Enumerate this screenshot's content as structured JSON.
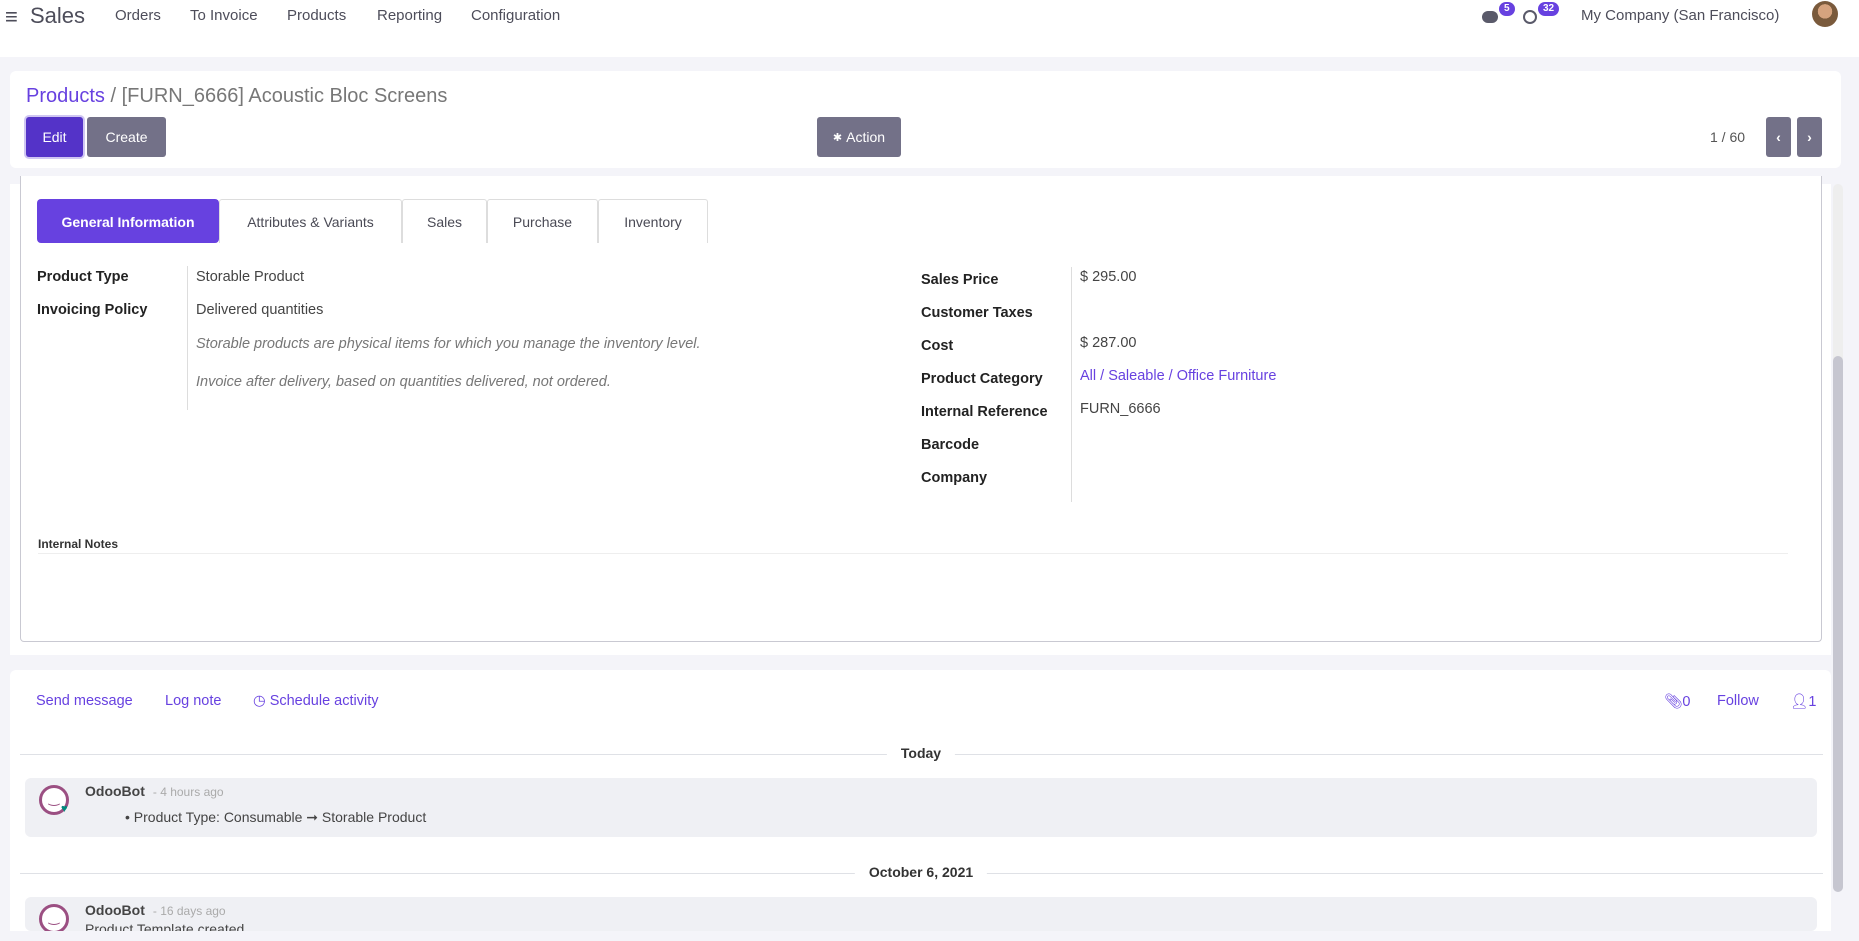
{
  "nav": {
    "app": "Sales",
    "menu": [
      "Orders",
      "To Invoice",
      "Products",
      "Reporting",
      "Configuration"
    ],
    "messages_count": "5",
    "activities_count": "32",
    "company": "My Company (San Francisco)"
  },
  "header": {
    "breadcrumb_parent": "Products",
    "breadcrumb_sep": "/",
    "title": "[FURN_6666] Acoustic Bloc Screens",
    "edit": "Edit",
    "create": "Create",
    "action": "Action",
    "pager": "1 / 60"
  },
  "tabs": [
    "General Information",
    "Attributes & Variants",
    "Sales",
    "Purchase",
    "Inventory"
  ],
  "left_fields": {
    "product_type_label": "Product Type",
    "product_type": "Storable Product",
    "invoicing_label": "Invoicing Policy",
    "invoicing": "Delivered quantities",
    "help1": "Storable products are physical items for which you manage the inventory level.",
    "help2": "Invoice after delivery, based on quantities delivered, not ordered."
  },
  "right_fields": [
    {
      "label": "Sales Price",
      "value": "$ 295.00"
    },
    {
      "label": "Customer Taxes",
      "value": ""
    },
    {
      "label": "Cost",
      "value": "$ 287.00"
    },
    {
      "label": "Product Category",
      "value": "All / Saleable / Office Furniture"
    },
    {
      "label": "Internal Reference",
      "value": "FURN_6666"
    },
    {
      "label": "Barcode",
      "value": ""
    },
    {
      "label": "Company",
      "value": ""
    }
  ],
  "internal_notes": "Internal Notes",
  "chatter": {
    "send": "Send message",
    "log": "Log note",
    "schedule": "Schedule activity",
    "attachments": "0",
    "follow": "Follow",
    "followers": "1",
    "groups": [
      {
        "date": "Today",
        "author": "OdooBot",
        "time": "- 4 hours ago",
        "change": "Product Type: Consumable ➞ Storable Product"
      },
      {
        "date": "October 6, 2021",
        "author": "OdooBot",
        "time": "- 16 days ago",
        "change": "Product Template created"
      }
    ]
  },
  "colors": {
    "primary": "#6741e0",
    "edit": "#5433c8",
    "secondary": "#737188"
  }
}
